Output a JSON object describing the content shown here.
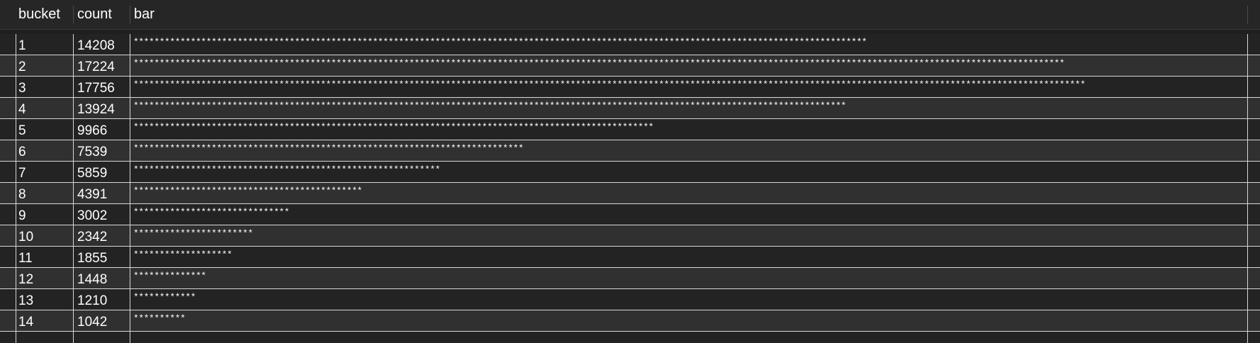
{
  "columns": {
    "bucket": "bucket",
    "count": "count",
    "bar": "bar"
  },
  "rows": [
    {
      "bucket": "1",
      "count": "14208",
      "bar": "*********************************************************************************************************************************************"
    },
    {
      "bucket": "2",
      "count": "17224",
      "bar": "***********************************************************************************************************************************************************************************"
    },
    {
      "bucket": "3",
      "count": "17756",
      "bar": "***************************************************************************************************************************************************************************************"
    },
    {
      "bucket": "4",
      "count": "13924",
      "bar": "*****************************************************************************************************************************************"
    },
    {
      "bucket": "5",
      "count": "9966",
      "bar": "****************************************************************************************************"
    },
    {
      "bucket": "6",
      "count": "7539",
      "bar": "***************************************************************************"
    },
    {
      "bucket": "7",
      "count": "5859",
      "bar": "***********************************************************"
    },
    {
      "bucket": "8",
      "count": "4391",
      "bar": "********************************************"
    },
    {
      "bucket": "9",
      "count": "3002",
      "bar": "******************************"
    },
    {
      "bucket": "10",
      "count": "2342",
      "bar": "***********************"
    },
    {
      "bucket": "11",
      "count": "1855",
      "bar": "*******************"
    },
    {
      "bucket": "12",
      "count": "1448",
      "bar": "**************"
    },
    {
      "bucket": "13",
      "count": "1210",
      "bar": "************"
    },
    {
      "bucket": "14",
      "count": "1042",
      "bar": "**********"
    }
  ]
}
